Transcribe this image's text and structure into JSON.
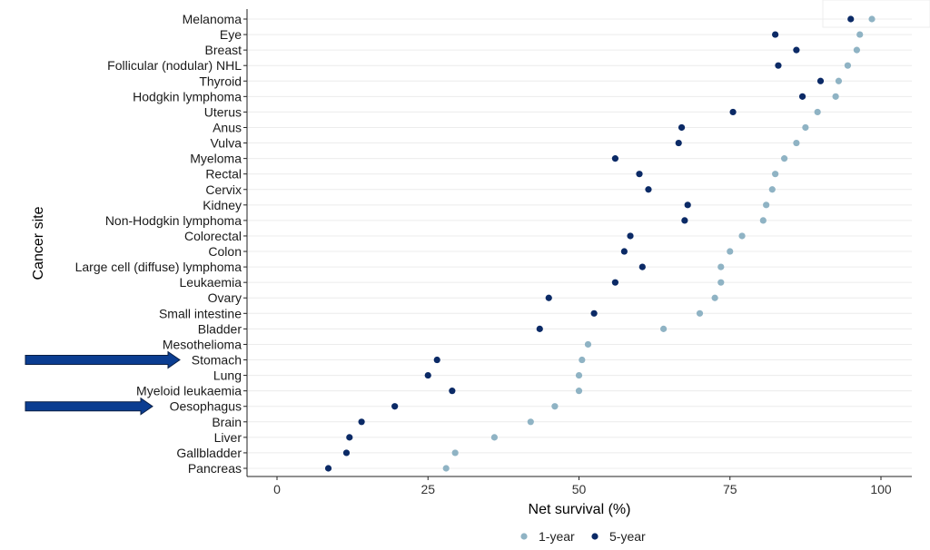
{
  "chart_data": {
    "type": "scatter",
    "xlabel": "Net survival (%)",
    "ylabel": "Cancer site",
    "xlim": [
      0,
      100
    ],
    "xticks": [
      0,
      25,
      50,
      75,
      100
    ],
    "grid": "horizontal",
    "legend_position": "bottom",
    "categories": [
      "Melanoma",
      "Eye",
      "Breast",
      "Follicular (nodular) NHL",
      "Thyroid",
      "Hodgkin lymphoma",
      "Uterus",
      "Anus",
      "Vulva",
      "Myeloma",
      "Rectal",
      "Cervix",
      "Kidney",
      "Non-Hodgkin lymphoma",
      "Colorectal",
      "Colon",
      "Large cell (diffuse) lymphoma",
      "Leukaemia",
      "Ovary",
      "Small intestine",
      "Bladder",
      "Mesothelioma",
      "Stomach",
      "Lung",
      "Myeloid leukaemia",
      "Oesophagus",
      "Brain",
      "Liver",
      "Gallbladder",
      "Pancreas"
    ],
    "series": [
      {
        "name": "1-year",
        "color": "#8fb3c4",
        "values": [
          98.5,
          96.5,
          96.0,
          94.5,
          93.0,
          92.5,
          89.5,
          87.5,
          86.0,
          84.0,
          82.5,
          82.0,
          81.0,
          80.5,
          77.0,
          75.0,
          73.5,
          73.5,
          72.5,
          70.0,
          64.0,
          51.5,
          50.5,
          50.0,
          50.0,
          46.0,
          42.0,
          36.0,
          29.5,
          28.0
        ]
      },
      {
        "name": "5-year",
        "color": "#0b2a66",
        "values": [
          95.0,
          82.5,
          86.0,
          83.0,
          90.0,
          87.0,
          75.5,
          67.0,
          66.5,
          56.0,
          60.0,
          61.5,
          68.0,
          67.5,
          58.5,
          57.5,
          60.5,
          56.0,
          45.0,
          52.5,
          43.5,
          null,
          26.5,
          25.0,
          29.0,
          19.5,
          14.0,
          12.0,
          11.5,
          8.5
        ]
      }
    ],
    "annotations": [
      {
        "type": "arrow",
        "target": "Stomach",
        "color": "#0b3d91"
      },
      {
        "type": "arrow",
        "target": "Oesophagus",
        "color": "#0b3d91"
      }
    ]
  }
}
